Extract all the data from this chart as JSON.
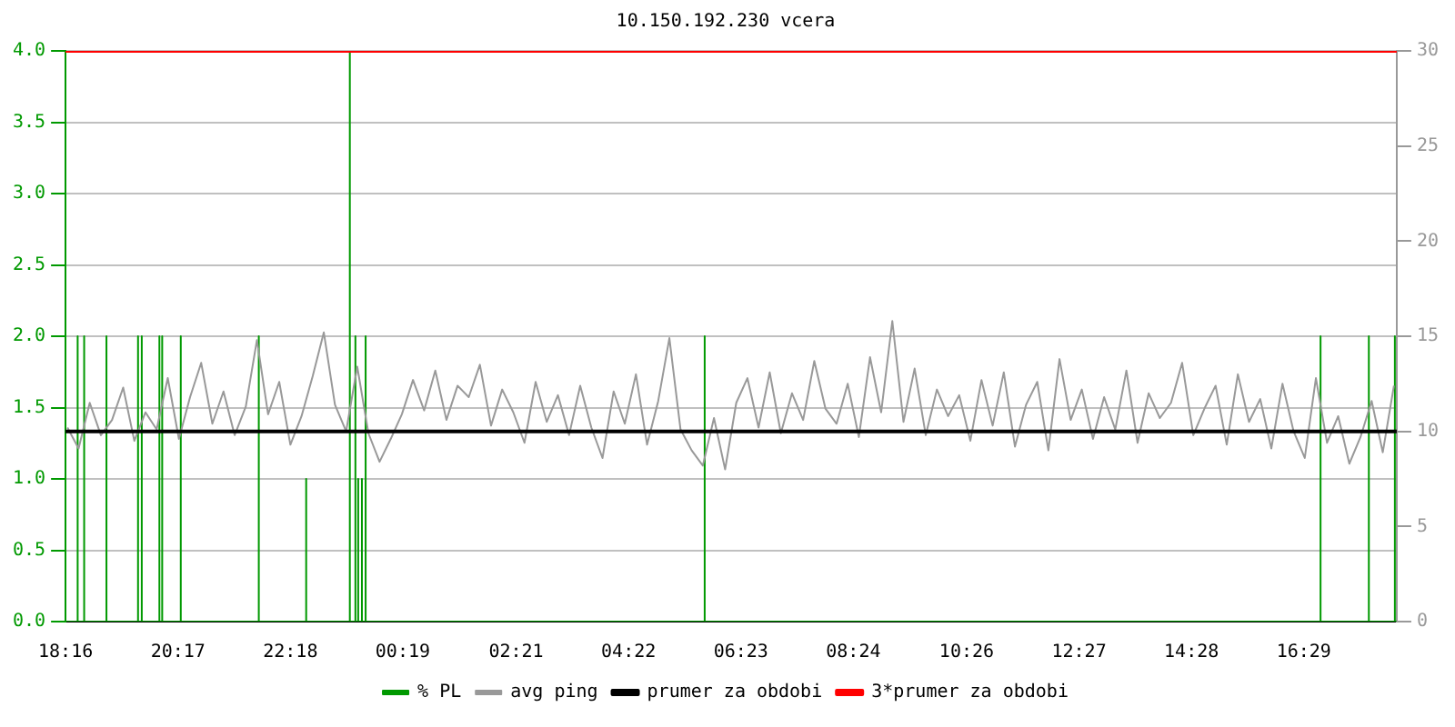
{
  "chart_data": {
    "type": "line",
    "title": "10.150.192.230 vcera",
    "xlim": [
      "--01-01T18:16",
      "--01-02T18:09"
    ],
    "xticks": [
      {
        "value": "--01-01T18:16",
        "label": "18:16"
      },
      {
        "value": "--01-01T20:17",
        "label": "20:17"
      },
      {
        "value": "--01-01T22:18",
        "label": "22:18"
      },
      {
        "value": "--01-02T00:19",
        "label": "00:19"
      },
      {
        "value": "--01-02T02:21",
        "label": "02:21"
      },
      {
        "value": "--01-02T04:22",
        "label": "04:22"
      },
      {
        "value": "--01-02T06:23",
        "label": "06:23"
      },
      {
        "value": "--01-02T08:24",
        "label": "08:24"
      },
      {
        "value": "--01-02T10:26",
        "label": "10:26"
      },
      {
        "value": "--01-02T12:27",
        "label": "12:27"
      },
      {
        "value": "--01-02T14:28",
        "label": "14:28"
      },
      {
        "value": "--01-02T16:29",
        "label": "16:29"
      }
    ],
    "ylim": [
      0,
      4
    ],
    "yticks": [
      {
        "value": 0,
        "label": "0.0"
      },
      {
        "value": 0.5,
        "label": "0.5"
      },
      {
        "value": 1,
        "label": "1.0"
      },
      {
        "value": 1.5,
        "label": "1.5"
      },
      {
        "value": 2,
        "label": "2.0"
      },
      {
        "value": 2.5,
        "label": "2.5"
      },
      {
        "value": 3,
        "label": "3.0"
      },
      {
        "value": 3.5,
        "label": "3.5"
      },
      {
        "value": 4,
        "label": "4.0"
      }
    ],
    "y2lim": [
      0,
      30
    ],
    "y2ticks": [
      0,
      5,
      10,
      15,
      20,
      25,
      30
    ],
    "grid": "y",
    "legend": "bottom",
    "marker": "none",
    "line_style": "solid",
    "series": [
      {
        "name": "% PL",
        "color": "#009900",
        "x": [
          "--01-01T18:16",
          "--01-01T18:29",
          "--01-01T18:29",
          "--01-01T18:29",
          "--01-01T18:36",
          "--01-01T18:36",
          "--01-01T18:36",
          "--01-01T19:00",
          "--01-01T19:00",
          "--01-01T19:00",
          "--01-01T19:34",
          "--01-01T19:34",
          "--01-01T19:34",
          "--01-01T19:38",
          "--01-01T19:38",
          "--01-01T19:38",
          "--01-01T19:57",
          "--01-01T19:57",
          "--01-01T19:57",
          "--01-01T20:00",
          "--01-01T20:00",
          "--01-01T20:00",
          "--01-01T20:20",
          "--01-01T20:20",
          "--01-01T20:20",
          "--01-01T21:44",
          "--01-01T21:44",
          "--01-01T21:44",
          "--01-01T22:35",
          "--01-01T22:35",
          "--01-01T22:35",
          "--01-01T23:22",
          "--01-01T23:22",
          "--01-01T23:22",
          "--01-01T23:28",
          "--01-01T23:28",
          "--01-01T23:28",
          "--01-01T23:31",
          "--01-01T23:31",
          "--01-01T23:31",
          "--01-01T23:35",
          "--01-01T23:35",
          "--01-01T23:35",
          "--01-01T23:39",
          "--01-01T23:39",
          "--01-01T23:39",
          "--01-02T05:44",
          "--01-02T05:44",
          "--01-02T05:44",
          "--01-02T16:47",
          "--01-02T16:47",
          "--01-02T16:47",
          "--01-02T17:39",
          "--01-02T17:39",
          "--01-02T17:39",
          "--01-02T18:07",
          "--01-02T18:07",
          "--01-02T18:07",
          "--01-02T18:09"
        ],
        "values": [
          0,
          0,
          2,
          0,
          0,
          2,
          0,
          0,
          2,
          0,
          0,
          2,
          0,
          0,
          2,
          0,
          0,
          2,
          0,
          0,
          2,
          0,
          0,
          2,
          0,
          0,
          2,
          0,
          0,
          1,
          0,
          0,
          4,
          0,
          0,
          2,
          0,
          0,
          1,
          0,
          0,
          1,
          0,
          0,
          2,
          0,
          0,
          2,
          0,
          0,
          2,
          0,
          0,
          2,
          0,
          0,
          2,
          0,
          0
        ]
      },
      {
        "name": "avg ping",
        "color": "#999999",
        "axis": "y2",
        "x": [
          "--01-01T18:18",
          "--01-01T18:30",
          "--01-01T18:42",
          "--01-01T18:54",
          "--01-01T19:06",
          "--01-01T19:18",
          "--01-01T19:30",
          "--01-01T19:42",
          "--01-01T19:54",
          "--01-01T20:06",
          "--01-01T20:18",
          "--01-01T20:30",
          "--01-01T20:42",
          "--01-01T20:54",
          "--01-01T21:06",
          "--01-01T21:18",
          "--01-01T21:30",
          "--01-01T21:42",
          "--01-01T21:54",
          "--01-01T22:06",
          "--01-01T22:18",
          "--01-01T22:30",
          "--01-01T22:42",
          "--01-01T22:54",
          "--01-01T23:06",
          "--01-01T23:18",
          "--01-01T23:30",
          "--01-01T23:42",
          "--01-01T23:54",
          "--01-02T00:06",
          "--01-02T00:18",
          "--01-02T00:30",
          "--01-02T00:42",
          "--01-02T00:54",
          "--01-02T01:06",
          "--01-02T01:18",
          "--01-02T01:30",
          "--01-02T01:42",
          "--01-02T01:54",
          "--01-02T02:06",
          "--01-02T02:18",
          "--01-02T02:30",
          "--01-02T02:42",
          "--01-02T02:54",
          "--01-02T03:06",
          "--01-02T03:18",
          "--01-02T03:30",
          "--01-02T03:42",
          "--01-02T03:54",
          "--01-02T04:06",
          "--01-02T04:18",
          "--01-02T04:30",
          "--01-02T04:42",
          "--01-02T04:54",
          "--01-02T05:06",
          "--01-02T05:18",
          "--01-02T05:30",
          "--01-02T05:42",
          "--01-02T05:54",
          "--01-02T06:06",
          "--01-02T06:18",
          "--01-02T06:30",
          "--01-02T06:42",
          "--01-02T06:54",
          "--01-02T07:06",
          "--01-02T07:18",
          "--01-02T07:30",
          "--01-02T07:42",
          "--01-02T07:54",
          "--01-02T08:06",
          "--01-02T08:18",
          "--01-02T08:30",
          "--01-02T08:42",
          "--01-02T08:54",
          "--01-02T09:06",
          "--01-02T09:18",
          "--01-02T09:30",
          "--01-02T09:42",
          "--01-02T09:54",
          "--01-02T10:06",
          "--01-02T10:18",
          "--01-02T10:30",
          "--01-02T10:42",
          "--01-02T10:54",
          "--01-02T11:06",
          "--01-02T11:18",
          "--01-02T11:30",
          "--01-02T11:42",
          "--01-02T11:54",
          "--01-02T12:06",
          "--01-02T12:18",
          "--01-02T12:30",
          "--01-02T12:42",
          "--01-02T12:54",
          "--01-02T13:06",
          "--01-02T13:18",
          "--01-02T13:30",
          "--01-02T13:42",
          "--01-02T13:54",
          "--01-02T14:06",
          "--01-02T14:18",
          "--01-02T14:30",
          "--01-02T14:42",
          "--01-02T14:54",
          "--01-02T15:06",
          "--01-02T15:18",
          "--01-02T15:30",
          "--01-02T15:42",
          "--01-02T15:54",
          "--01-02T16:06",
          "--01-02T16:18",
          "--01-02T16:30",
          "--01-02T16:42",
          "--01-02T16:54",
          "--01-02T17:06",
          "--01-02T17:18",
          "--01-02T17:30",
          "--01-02T17:42",
          "--01-02T17:54",
          "--01-02T18:06"
        ],
        "values": [
          10.2,
          9.1,
          11.5,
          9.8,
          10.6,
          12.3,
          9.5,
          11.0,
          10.1,
          12.8,
          9.6,
          11.8,
          13.6,
          10.4,
          12.1,
          9.8,
          11.3,
          14.8,
          10.9,
          12.6,
          9.3,
          10.8,
          12.9,
          15.2,
          11.4,
          10.0,
          13.4,
          9.9,
          8.4,
          9.6,
          10.9,
          12.7,
          11.1,
          13.2,
          10.6,
          12.4,
          11.8,
          13.5,
          10.3,
          12.2,
          11.0,
          9.4,
          12.6,
          10.5,
          11.9,
          9.8,
          12.4,
          10.2,
          8.6,
          12.1,
          10.4,
          13.0,
          9.3,
          11.6,
          14.9,
          10.1,
          9.0,
          8.2,
          10.7,
          8.0,
          11.5,
          12.8,
          10.2,
          13.1,
          9.9,
          12.0,
          10.6,
          13.7,
          11.2,
          10.4,
          12.5,
          9.7,
          13.9,
          11.0,
          15.8,
          10.5,
          13.3,
          9.8,
          12.2,
          10.8,
          11.9,
          9.5,
          12.7,
          10.3,
          13.1,
          9.2,
          11.4,
          12.6,
          9.0,
          13.8,
          10.6,
          12.2,
          9.6,
          11.8,
          10.1,
          13.2,
          9.4,
          12.0,
          10.7,
          11.5,
          13.6,
          9.8,
          11.2,
          12.4,
          9.3,
          13.0,
          10.5,
          11.7,
          9.1,
          12.5,
          10.0,
          8.6,
          12.8,
          9.4,
          10.8,
          8.3,
          9.7,
          11.6,
          8.9,
          12.4
        ]
      },
      {
        "name": "prumer za obdobi",
        "color": "#000000",
        "axis": "y2",
        "x": [
          "--01-01T18:16",
          "--01-02T18:09"
        ],
        "values": [
          10,
          10
        ]
      },
      {
        "name": "3*prumer za obdobi",
        "color": "#ff0000",
        "axis": "y2",
        "x": [
          "--01-01T18:16",
          "--01-02T18:09"
        ],
        "values": [
          30,
          30
        ]
      }
    ]
  }
}
